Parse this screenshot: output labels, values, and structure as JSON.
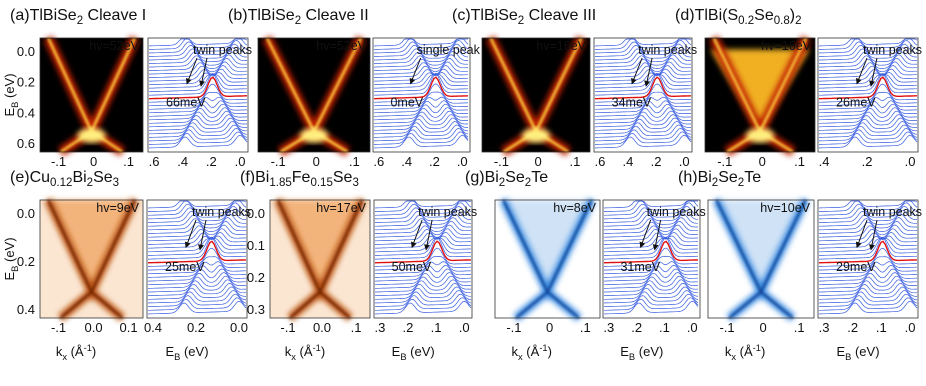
{
  "panels": [
    {
      "label": "(a)",
      "title": [
        {
          "text": "TlBiSe"
        },
        {
          "sub": "2"
        },
        {
          "text": " Cleave I"
        }
      ],
      "hv": "hv=52eV",
      "peak_label": "twin peaks",
      "gap": "66meV",
      "yticks": [
        "0.0",
        "0.2",
        "0.4",
        "0.6"
      ],
      "xticks": [
        "-.1",
        "0",
        ".1"
      ],
      "edc_ticks": [
        ".6",
        ".4",
        ".2",
        ".0"
      ]
    },
    {
      "label": "(b)",
      "title": [
        {
          "text": "TlBiSe"
        },
        {
          "sub": "2"
        },
        {
          "text": " Cleave II"
        }
      ],
      "hv": "hv=52eV",
      "peak_label": "single peak",
      "gap": "0meV",
      "xticks": [
        "-.1",
        "0",
        ".1"
      ],
      "edc_ticks": [
        ".6",
        ".4",
        ".2",
        ".0"
      ]
    },
    {
      "label": "(c)",
      "title": [
        {
          "text": "TlBiSe"
        },
        {
          "sub": "2"
        },
        {
          "text": " Cleave III"
        }
      ],
      "hv": "hv=16eV",
      "peak_label": "twin peaks",
      "gap": "34meV",
      "xticks": [
        "-.1",
        "0",
        ".1"
      ],
      "edc_ticks": [
        ".6",
        ".4",
        ".2",
        ".0"
      ]
    },
    {
      "label": "(d)",
      "title": [
        {
          "text": "TlBi(S"
        },
        {
          "sub": "0.2"
        },
        {
          "text": "Se"
        },
        {
          "sub": "0.8"
        },
        {
          "text": ")"
        },
        {
          "sub": "2"
        }
      ],
      "hv": "hv=16eV",
      "peak_label": "twin peaks",
      "gap": "26meV",
      "xticks": [
        "-.1",
        "0",
        ".1"
      ],
      "edc_ticks": [
        ".4",
        ".2",
        ".0"
      ]
    },
    {
      "label": "(e)",
      "title": [
        {
          "text": "Cu"
        },
        {
          "sub": "0.12"
        },
        {
          "text": "Bi"
        },
        {
          "sub": "2"
        },
        {
          "text": "Se"
        },
        {
          "sub": "3"
        }
      ],
      "hv": "hv=9eV",
      "peak_label": "twin peaks",
      "gap": "25meV",
      "yticks": [
        "0.0",
        "0.2",
        "0.4"
      ],
      "xticks": [
        "-.1",
        "0.0",
        "0.1"
      ],
      "edc_ticks": [
        "0.4",
        "0.2",
        "0.0"
      ]
    },
    {
      "label": "(f)",
      "title": [
        {
          "text": "Bi"
        },
        {
          "sub": "1.85"
        },
        {
          "text": "Fe"
        },
        {
          "sub": "0.15"
        },
        {
          "text": "Se"
        },
        {
          "sub": "3"
        }
      ],
      "hv": "hv=17eV",
      "peak_label": "twin peaks",
      "gap": "50meV",
      "yticks": [
        "0.0",
        "0.1",
        "0.2",
        "0.3"
      ],
      "xticks": [
        "-.1",
        "0.0",
        ".1"
      ],
      "edc_ticks": [
        ".3",
        ".2",
        ".1",
        ".0"
      ]
    },
    {
      "label": "(g)",
      "title": [
        {
          "text": "Bi"
        },
        {
          "sub": "2"
        },
        {
          "text": "Se"
        },
        {
          "sub": "2"
        },
        {
          "text": "Te"
        }
      ],
      "hv": "hv=8eV",
      "peak_label": "twin peaks",
      "gap": "31meV",
      "xticks": [
        "-.1",
        "0",
        ".1"
      ],
      "edc_ticks": [
        ".3",
        ".2",
        ".1",
        ".0"
      ]
    },
    {
      "label": "(h)",
      "title": [
        {
          "text": "Bi"
        },
        {
          "sub": "2"
        },
        {
          "text": "Se"
        },
        {
          "sub": "2"
        },
        {
          "text": "Te"
        }
      ],
      "hv": "hv=10eV",
      "peak_label": "twin peaks",
      "gap": "29meV",
      "xticks": [
        "-.1",
        "0",
        ".1"
      ],
      "edc_ticks": [
        ".3",
        ".2",
        ".1",
        ".0"
      ]
    }
  ],
  "axis_labels": {
    "energy": [
      {
        "text": "E"
      },
      {
        "sub": "B"
      },
      {
        "text": " (eV)"
      }
    ],
    "momentum": [
      {
        "text": "k"
      },
      {
        "sub": "x"
      },
      {
        "text": " (Å"
      },
      {
        "sup": "-1"
      },
      {
        "text": ")"
      }
    ]
  }
}
